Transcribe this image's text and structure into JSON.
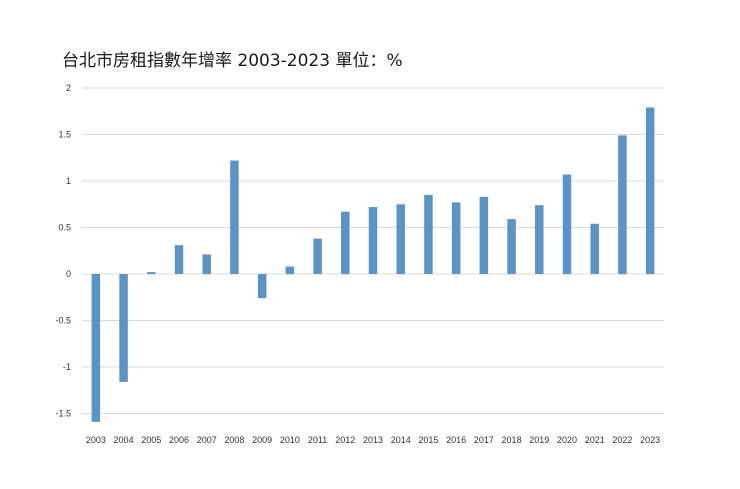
{
  "chart_data": {
    "type": "bar",
    "title": "台北市房租指數年增率 2003-2023 單位：%",
    "xlabel": "",
    "ylabel": "",
    "categories": [
      "2003",
      "2004",
      "2005",
      "2006",
      "2007",
      "2008",
      "2009",
      "2010",
      "2011",
      "2012",
      "2013",
      "2014",
      "2015",
      "2016",
      "2017",
      "2018",
      "2019",
      "2020",
      "2021",
      "2022",
      "2023"
    ],
    "values": [
      -1.59,
      -1.16,
      0.02,
      0.31,
      0.21,
      1.22,
      -0.26,
      0.08,
      0.38,
      0.67,
      0.72,
      0.75,
      0.85,
      0.77,
      0.83,
      0.59,
      0.74,
      1.07,
      0.54,
      1.49,
      1.79
    ],
    "ylim": [
      -1.6,
      2
    ],
    "yticks": [
      2,
      1.5,
      1,
      0.5,
      0,
      -0.5,
      -1,
      -1.5
    ],
    "ytick_labels": [
      "2",
      "1.5",
      "1",
      "0.5",
      "0",
      "-0.5",
      "-1",
      "-1.5"
    ],
    "grid": true,
    "bar_color": "#5b93c7"
  }
}
